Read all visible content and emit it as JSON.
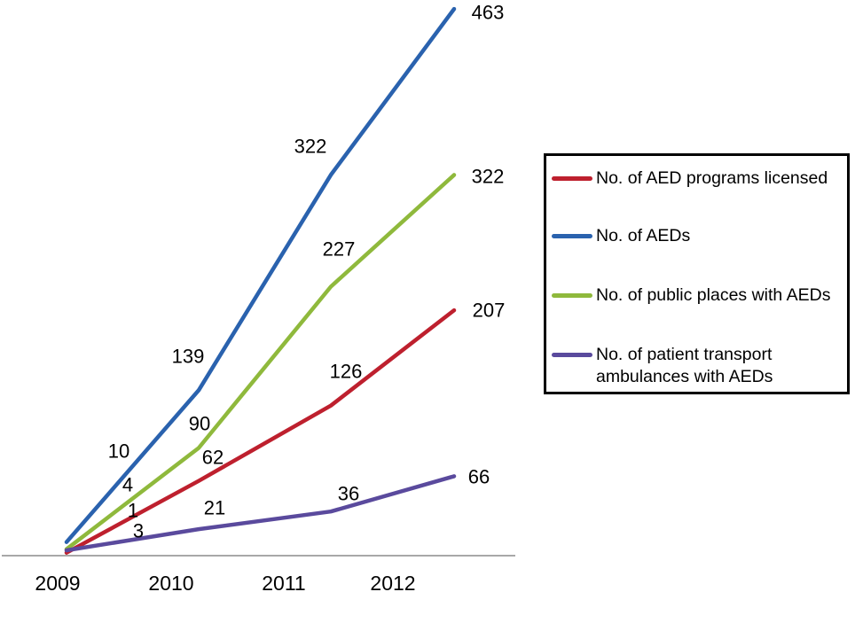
{
  "chart_data": {
    "type": "line",
    "title": "",
    "xlabel": "",
    "ylabel": "",
    "categories": [
      "2009",
      "2010",
      "2011",
      "2012"
    ],
    "ylim": [
      0,
      475
    ],
    "grid": false,
    "legend_position": "right",
    "data_labels": true,
    "series": [
      {
        "id": "programs",
        "name": "No. of AED programs licensed",
        "color": "#be202e",
        "values": [
          1,
          62,
          126,
          207
        ]
      },
      {
        "id": "aeds",
        "name": "No. of AEDs",
        "color": "#2a62ae",
        "values": [
          10,
          139,
          322,
          463
        ]
      },
      {
        "id": "public-places",
        "name": "No. of public places with AEDs",
        "color": "#8fb93c",
        "values": [
          4,
          90,
          227,
          322
        ]
      },
      {
        "id": "ambulances",
        "name": "No. of patient transport ambulances with AEDs",
        "color": "#5a4a9d",
        "values": [
          3,
          21,
          36,
          66
        ]
      }
    ]
  },
  "colors": {
    "axis_line": "#a8a8a8",
    "label_text": "#000000",
    "legend_border": "#000000",
    "background": "#ffffff"
  }
}
